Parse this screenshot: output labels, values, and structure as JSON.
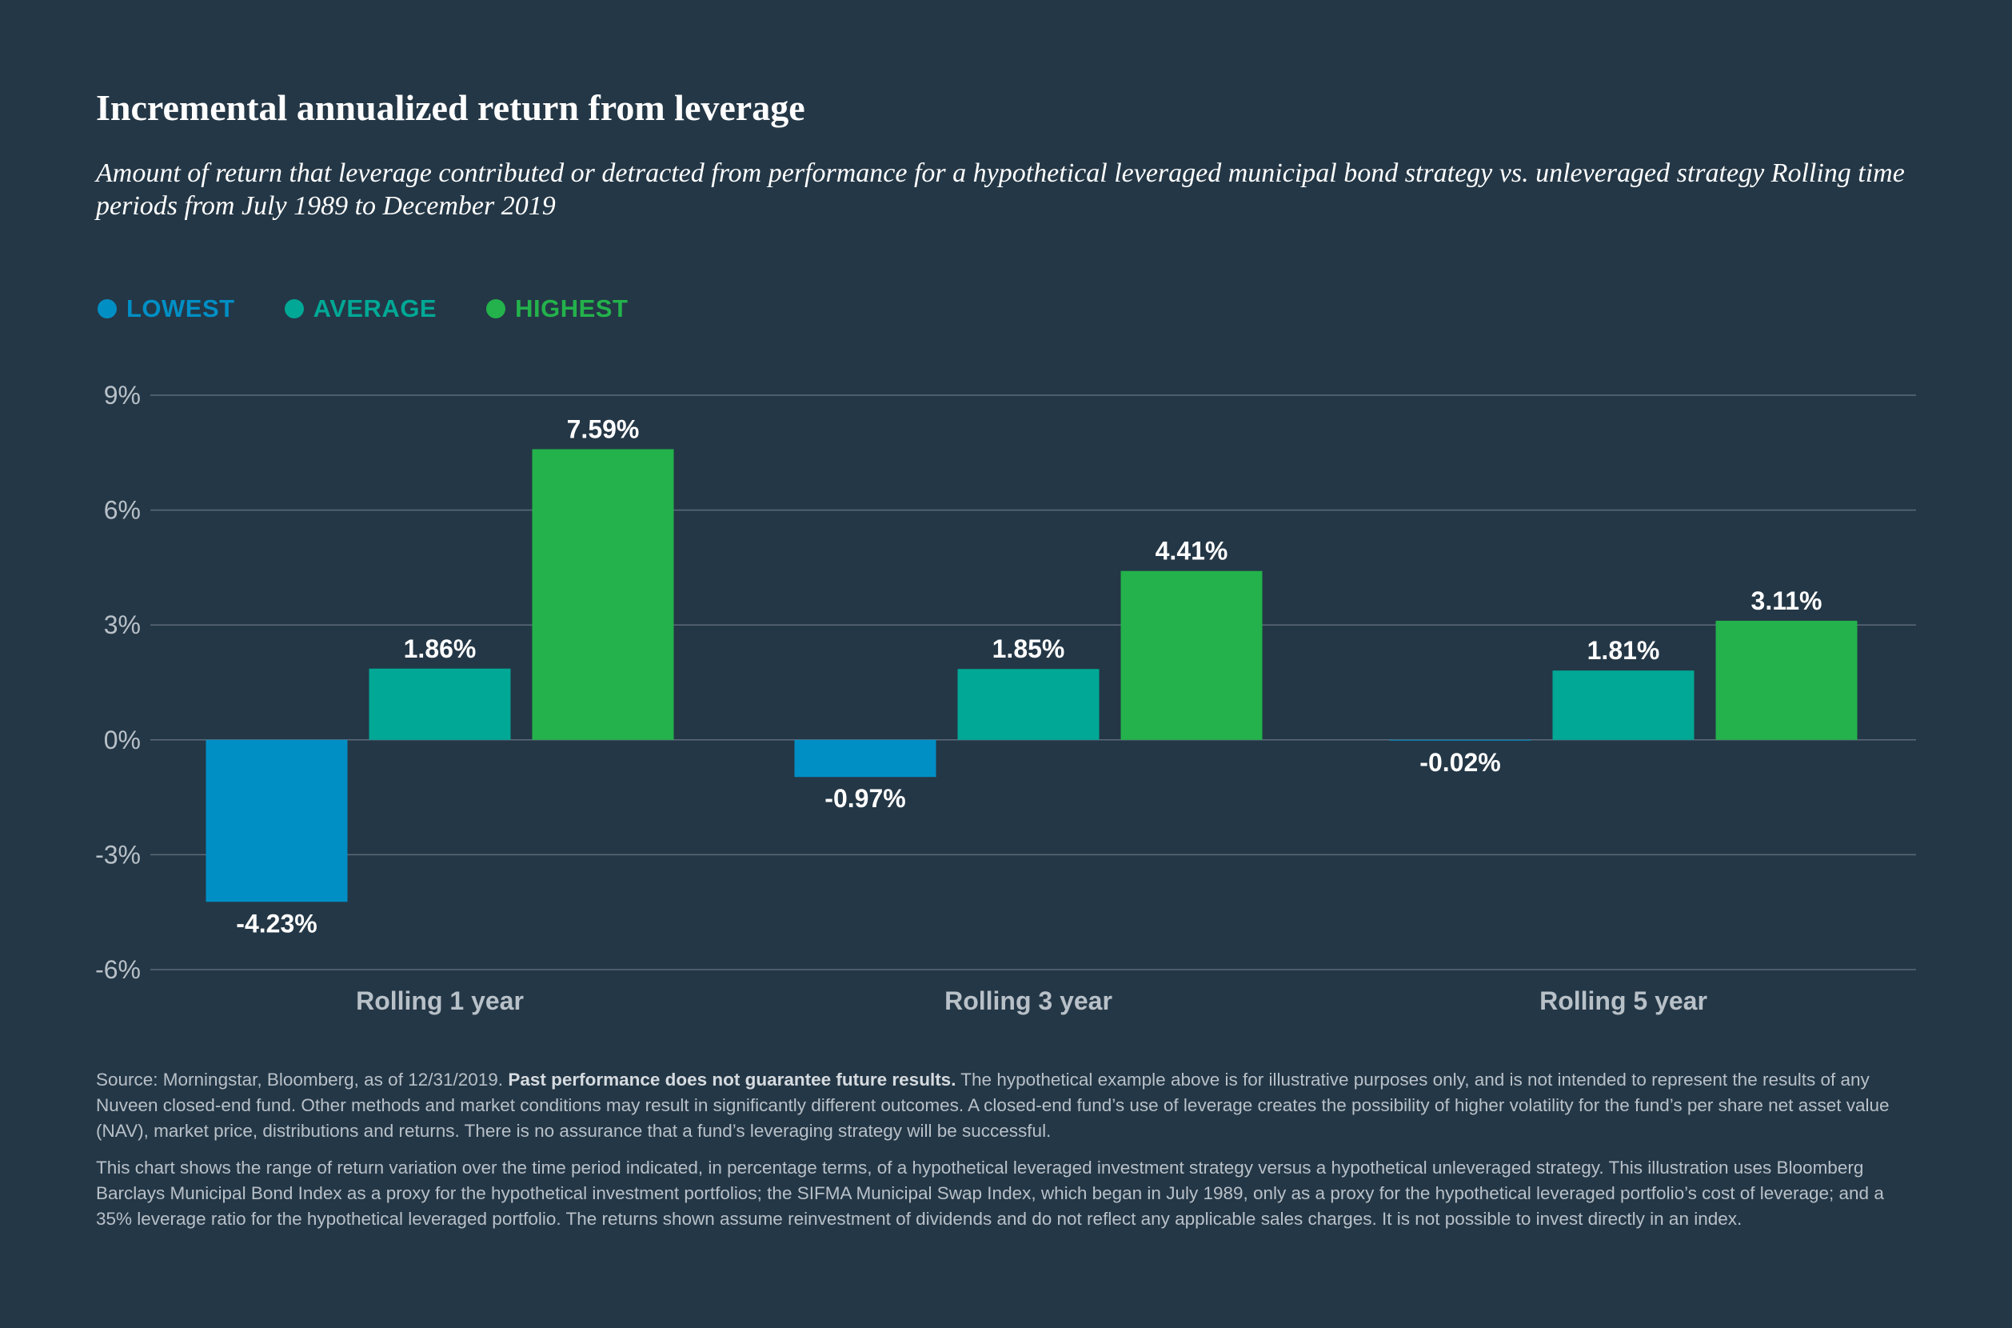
{
  "header": {
    "title": "Incremental annualized return from leverage",
    "subtitle": "Amount of return that leverage contributed or detracted from performance for a hypothetical leveraged municipal bond strategy vs. unleveraged strategy Rolling time periods from July 1989 to December 2019"
  },
  "legend": [
    {
      "label": "LOWEST",
      "color": "#008fc5"
    },
    {
      "label": "AVERAGE",
      "color": "#00a895"
    },
    {
      "label": "HIGHEST",
      "color": "#23b24b"
    }
  ],
  "chart_data": {
    "type": "bar",
    "categories": [
      "Rolling 1 year",
      "Rolling 3 year",
      "Rolling 5 year"
    ],
    "series": [
      {
        "name": "LOWEST",
        "color": "#008fc5",
        "values": [
          -4.23,
          -0.97,
          -0.02
        ],
        "labels": [
          "-4.23%",
          "-0.97%",
          "-0.02%"
        ]
      },
      {
        "name": "AVERAGE",
        "color": "#00a895",
        "values": [
          1.86,
          1.85,
          1.81
        ],
        "labels": [
          "1.86%",
          "1.85%",
          "1.81%"
        ]
      },
      {
        "name": "HIGHEST",
        "color": "#23b24b",
        "values": [
          7.59,
          4.41,
          3.11
        ],
        "labels": [
          "7.59%",
          "4.41%",
          "3.11%"
        ]
      }
    ],
    "yticks": [
      9,
      6,
      3,
      0,
      -3,
      -6
    ],
    "ytick_labels": [
      "9%",
      "6%",
      "3%",
      "0%",
      "-3%",
      "-6%"
    ],
    "ylim": [
      -6,
      9
    ],
    "grid": true,
    "legend_position": "top-left"
  },
  "footnotes": {
    "p1_lead": "Source: Morningstar, Bloomberg, as of 12/31/2019. ",
    "p1_bold": "Past performance does not guarantee future results.",
    "p1_rest": " The hypothetical example above is for illustrative purposes only, and is not intended to represent the results of any Nuveen closed-end fund. Other methods and market conditions may result in significantly different outcomes. A closed-end fund’s use of leverage creates the possibility of higher volatility for the fund’s per share net asset value (NAV), market price, distributions and returns. There is no assurance that a fund’s leveraging strategy will be successful.",
    "p2": "This chart shows the range of return variation over the time period indicated, in percentage terms, of a hypothetical leveraged investment strategy versus a hypothetical unleveraged strategy. This illustration uses Bloomberg Barclays Municipal Bond Index as a proxy for the hypothetical investment portfolios; the SIFMA Municipal Swap Index, which began in July 1989, only as a proxy for the hypothetical leveraged portfolio’s cost of leverage; and a 35% leverage ratio for the hypothetical leveraged portfolio. The returns shown assume reinvestment of dividends and do not reflect any applicable sales charges. It is not possible to invest directly in an index."
  }
}
